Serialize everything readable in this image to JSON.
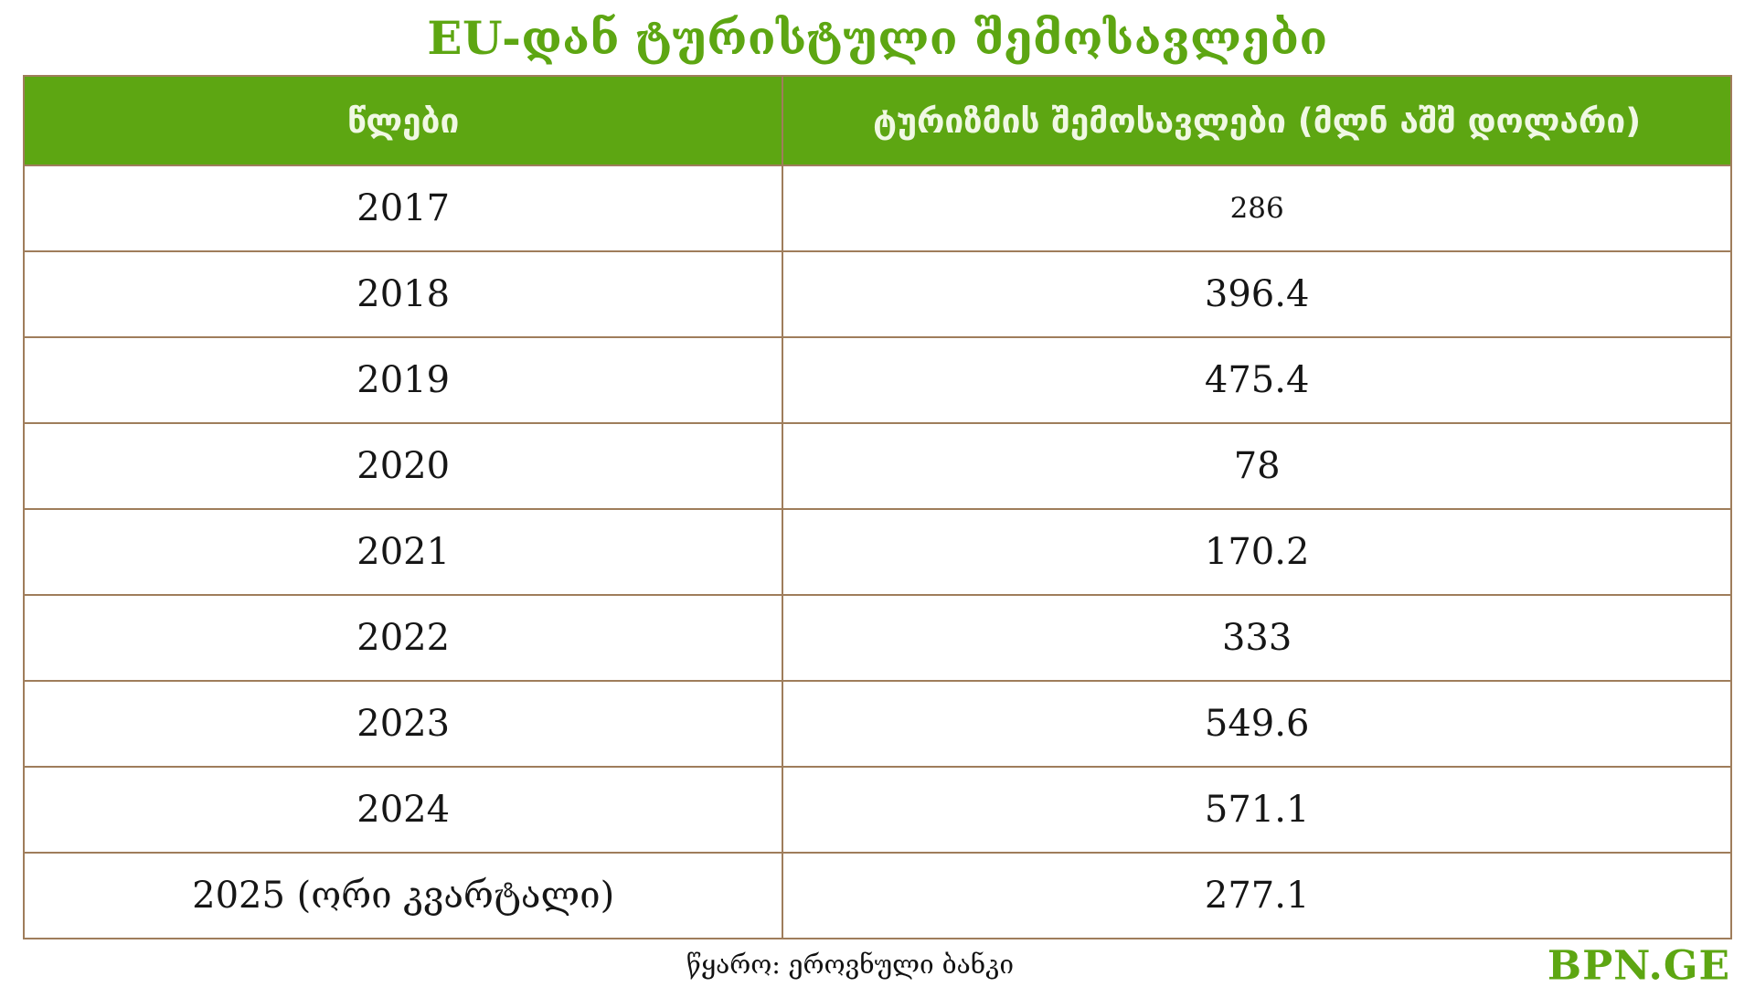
{
  "title": "EU-დან ტურისტული შემოსავლები",
  "colors": {
    "accent_green": "#5da612",
    "table_border": "#9f7d5b",
    "header_text": "#f0f8e4"
  },
  "table": {
    "headers": [
      "წლები",
      "ტურიზმის შემოსავლები (მლნ აშშ დოლარი)"
    ],
    "rows": [
      {
        "year": "2017",
        "value": "286",
        "small": true
      },
      {
        "year": "2018",
        "value": "396.4",
        "small": false
      },
      {
        "year": "2019",
        "value": "475.4",
        "small": false
      },
      {
        "year": "2020",
        "value": "78",
        "small": false
      },
      {
        "year": "2021",
        "value": "170.2",
        "small": false
      },
      {
        "year": "2022",
        "value": "333",
        "small": false
      },
      {
        "year": "2023",
        "value": "549.6",
        "small": false
      },
      {
        "year": "2024",
        "value": "571.1",
        "small": false
      },
      {
        "year": "2025 (ორი კვარტალი)",
        "value": "277.1",
        "small": false
      }
    ]
  },
  "footer": {
    "source": "წყარო: ეროვნული ბანკი",
    "brand": "BPN.GE"
  },
  "chart_data": {
    "type": "table",
    "title": "EU-დან ტურისტული შემოსავლები",
    "columns": [
      "წლები",
      "ტურიზმის შემოსავლები (მლნ აშშ დოლარი)"
    ],
    "categories": [
      "2017",
      "2018",
      "2019",
      "2020",
      "2021",
      "2022",
      "2023",
      "2024",
      "2025 (ორი კვარტალი)"
    ],
    "values": [
      286,
      396.4,
      475.4,
      78,
      170.2,
      333,
      549.6,
      571.1,
      277.1
    ],
    "ylabel": "ტურიზმის შემოსავლები (მლნ აშშ დოლარი)",
    "source": "წყარო: ეროვნული ბანკი",
    "legend_position": "none",
    "grid": true
  }
}
